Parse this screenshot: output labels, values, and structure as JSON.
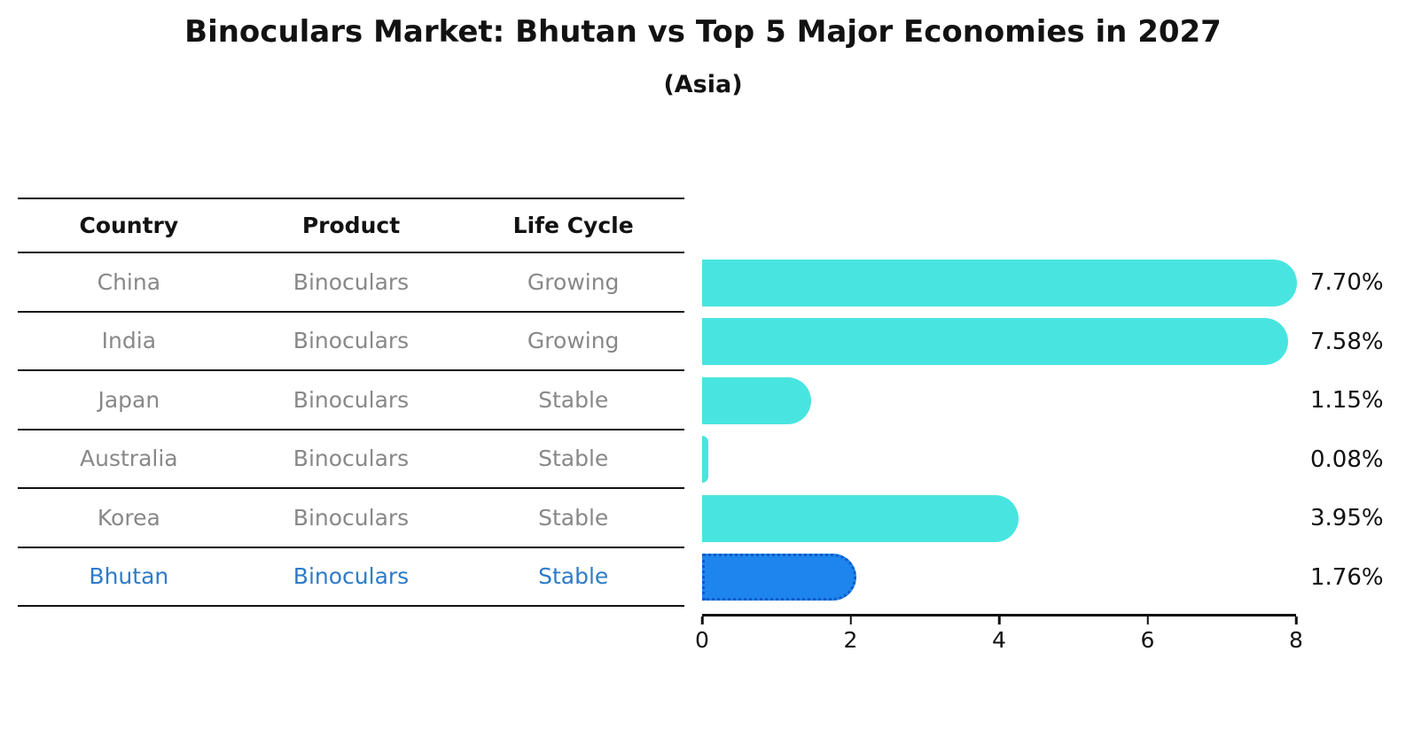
{
  "title": "Binoculars Market: Bhutan vs Top 5 Major Economies in 2027",
  "subtitle": "(Asia)",
  "table": {
    "headers": [
      "Country",
      "Product",
      "Life Cycle"
    ],
    "rows": [
      {
        "country": "China",
        "product": "Binoculars",
        "life_cycle": "Growing",
        "highlight": false
      },
      {
        "country": "India",
        "product": "Binoculars",
        "life_cycle": "Growing",
        "highlight": false
      },
      {
        "country": "Japan",
        "product": "Binoculars",
        "life_cycle": "Stable",
        "highlight": false
      },
      {
        "country": "Australia",
        "product": "Binoculars",
        "life_cycle": "Stable",
        "highlight": false
      },
      {
        "country": "Korea",
        "product": "Binoculars",
        "life_cycle": "Stable",
        "highlight": false
      },
      {
        "country": "Bhutan",
        "product": "Binoculars",
        "life_cycle": "Stable",
        "highlight": true
      }
    ]
  },
  "chart_data": {
    "type": "bar",
    "orientation": "horizontal",
    "title": "Binoculars Market: Bhutan vs Top 5 Major Economies in 2027",
    "subtitle": "(Asia)",
    "categories": [
      "China",
      "India",
      "Japan",
      "Australia",
      "Korea",
      "Bhutan"
    ],
    "values": [
      7.7,
      7.58,
      1.15,
      0.08,
      3.95,
      1.76
    ],
    "value_labels": [
      "7.70%",
      "7.58%",
      "1.15%",
      "0.08%",
      "3.95%",
      "1.76%"
    ],
    "xlim": [
      0,
      8
    ],
    "xticks": [
      "0",
      "2",
      "4",
      "6",
      "8"
    ],
    "grid": false,
    "legend": false,
    "bar_color": "#48E5E0",
    "highlight_color": "#1E84EE",
    "highlight_border_color": "#0D5BC6",
    "highlight_index": 5,
    "highlight_text_color": "#2E7BC8"
  },
  "colors": {
    "background": "#ffffff",
    "text": "#111111",
    "muted_text": "#888888"
  }
}
